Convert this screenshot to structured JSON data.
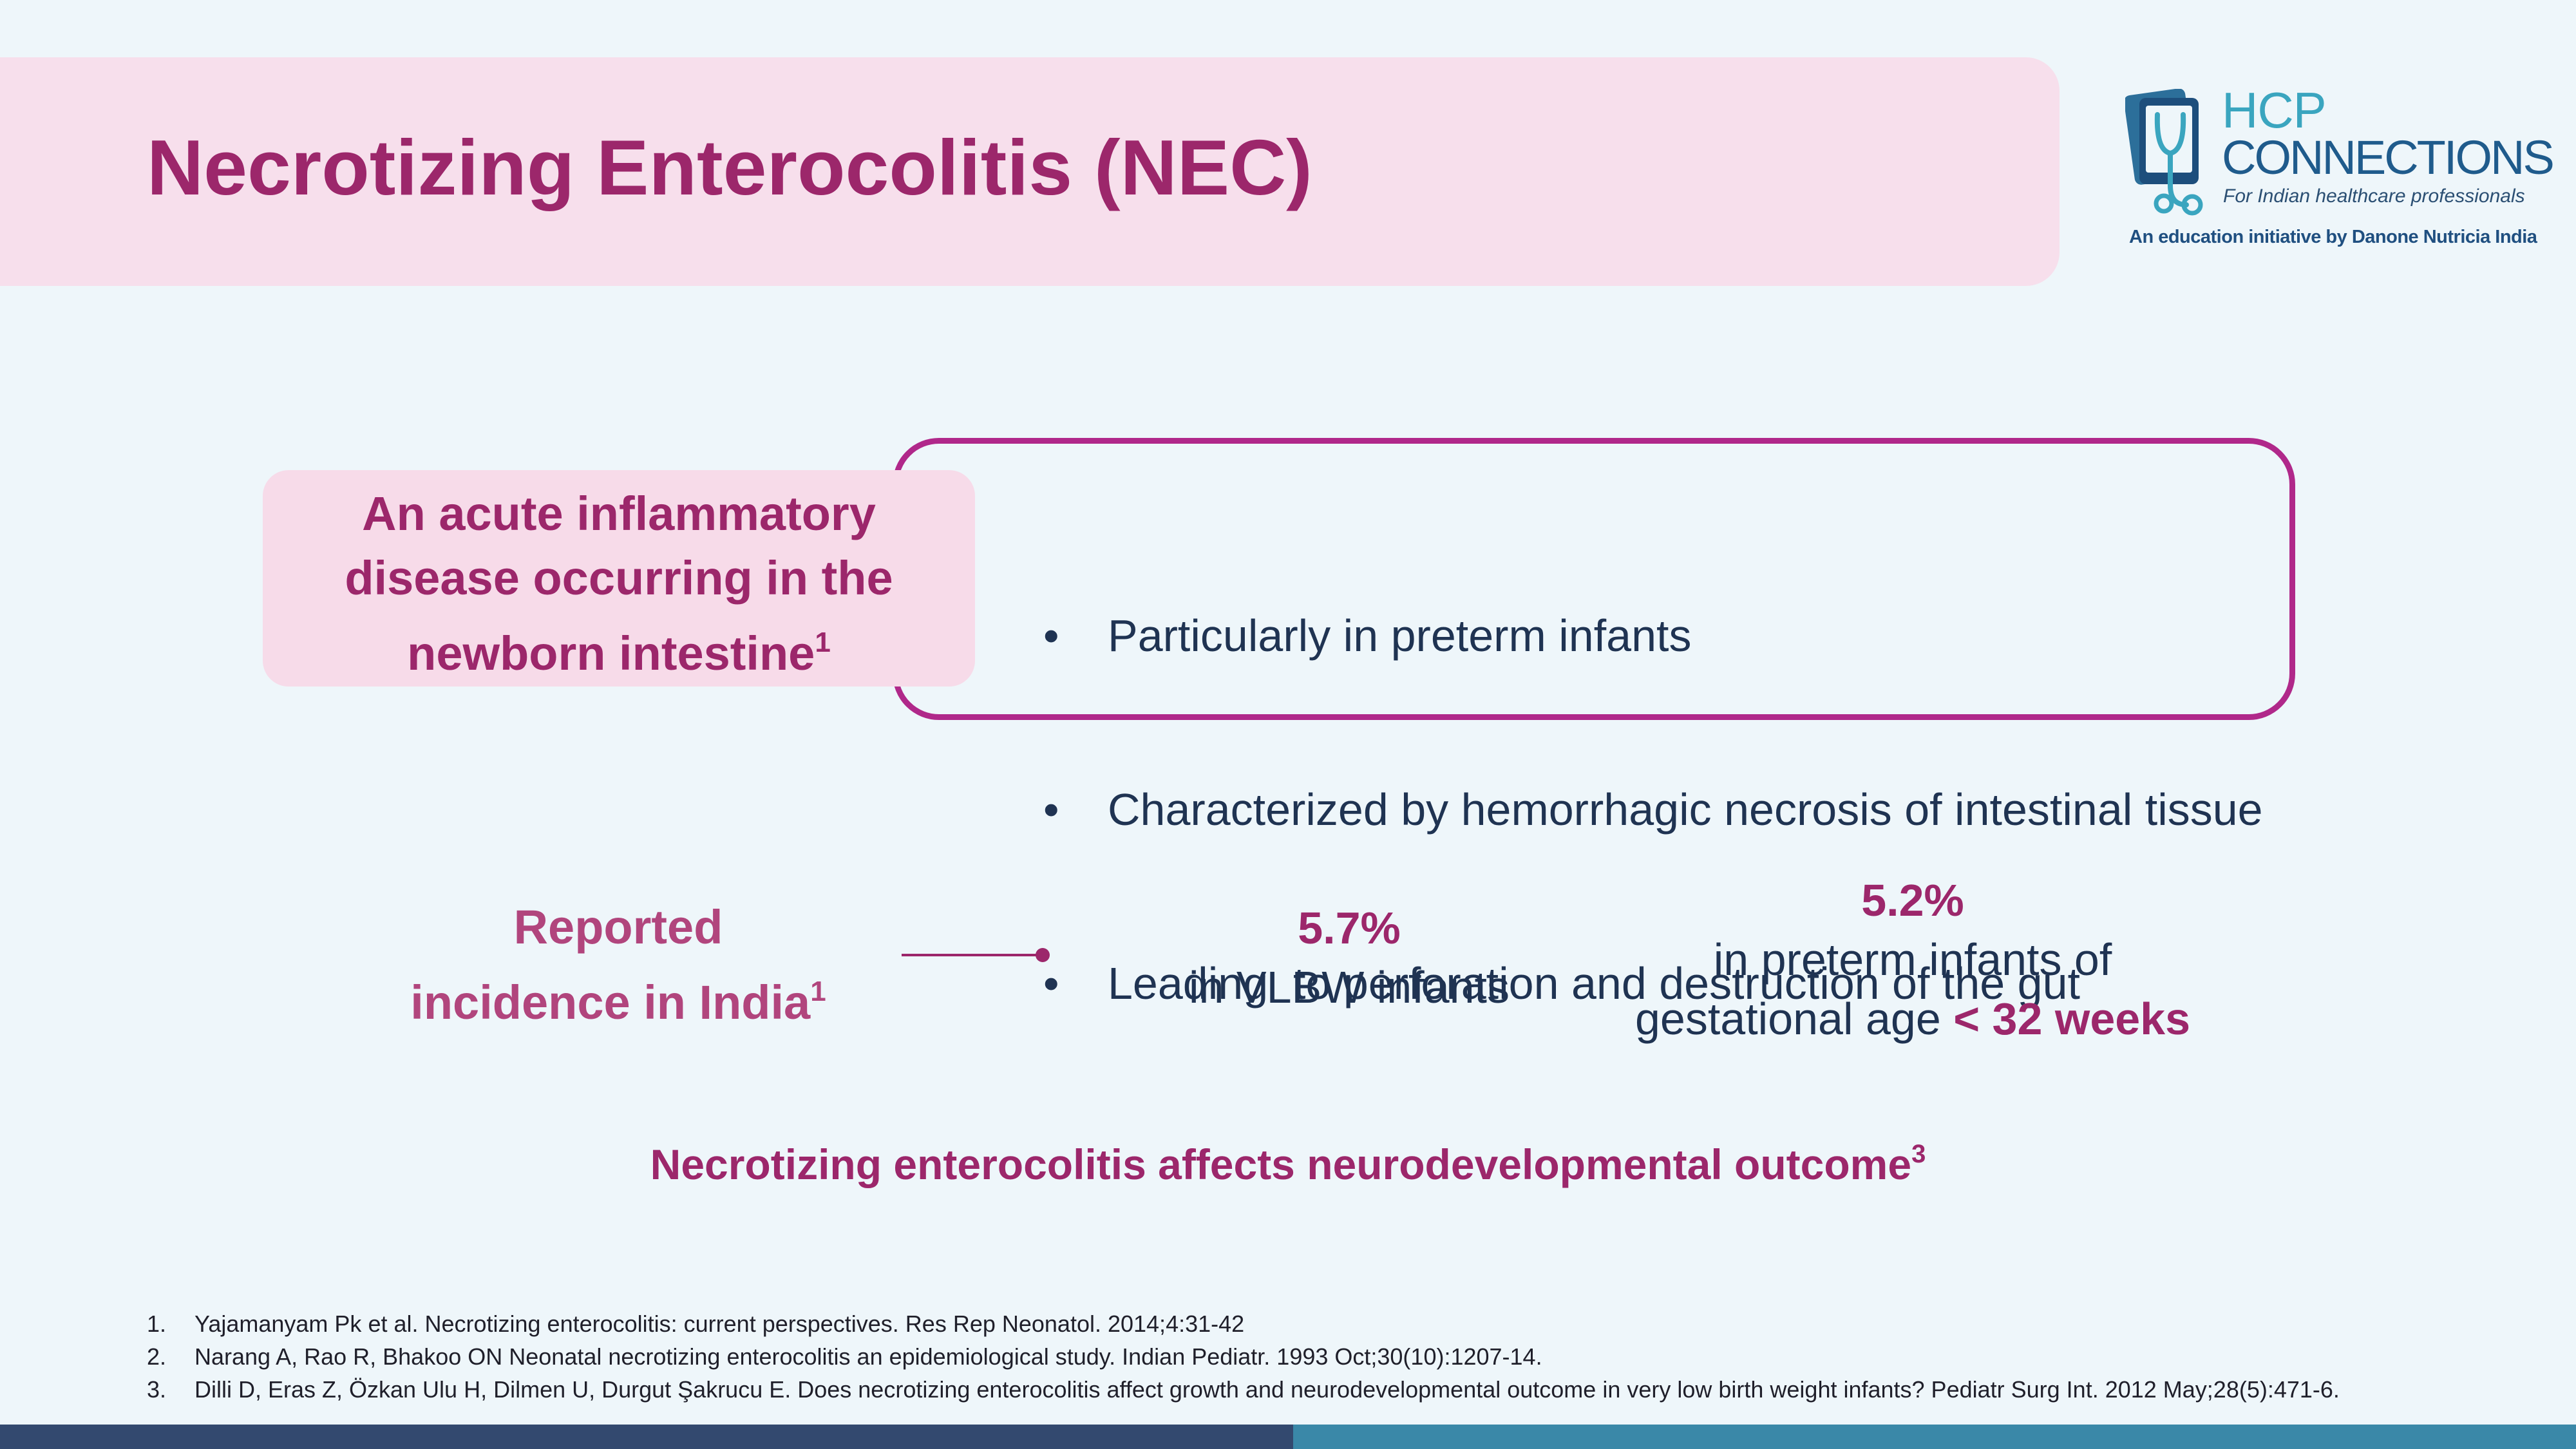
{
  "title": "Necrotizing Enterocolitis (NEC)",
  "logo": {
    "line1": "HCP",
    "line2": "CONNECTIONS",
    "subline": "For Indian healthcare professionals",
    "tagline": "An education initiative by Danone Nutricia India"
  },
  "definition": {
    "line1": "An acute inflammatory",
    "line2": "disease occurring in the",
    "line3": "newborn intestine",
    "ref": "1",
    "points": [
      "Particularly in preterm infants",
      "Characterized by hemorrhagic necrosis of intestinal tissue",
      "Leading  to perforation and destruction of the gut"
    ]
  },
  "incidence": {
    "line1": "Reported",
    "line2": "incidence in India",
    "ref": "1",
    "stat1": {
      "value": "5.7%",
      "desc": "in VLBW infants"
    },
    "stat2": {
      "value": "5.2%",
      "desc1": "in preterm infants of",
      "desc2": "gestational age ",
      "emph": "< 32 weeks"
    }
  },
  "conclusion": {
    "text": "Necrotizing enterocolitis affects neurodevelopmental outcome",
    "ref": "3"
  },
  "references": [
    {
      "num": "1.",
      "text": "Yajamanyam Pk et al. Necrotizing enterocolitis: current perspectives. Res Rep Neonatol. 2014;4:31-42"
    },
    {
      "num": "2.",
      "text": "Narang A, Rao R, Bhakoo ON Neonatal necrotizing enterocolitis an epidemiological study. Indian Pediatr. 1993 Oct;30(10):1207-14."
    },
    {
      "num": "3.",
      "text": "Dilli D, Eras Z, Özkan Ulu H, Dilmen U, Durgut Şakrucu E. Does necrotizing enterocolitis affect growth and neurodevelopmental outcome in very low birth weight infants? Pediatr Surg Int. 2012 May;28(5):471-6."
    }
  ],
  "colors": {
    "accent": "#9c276b",
    "outline": "#b0288a",
    "banner": "#f7dfec",
    "text": "#1f3352",
    "footer_left": "#33496f",
    "footer_right": "#3a88a8"
  }
}
